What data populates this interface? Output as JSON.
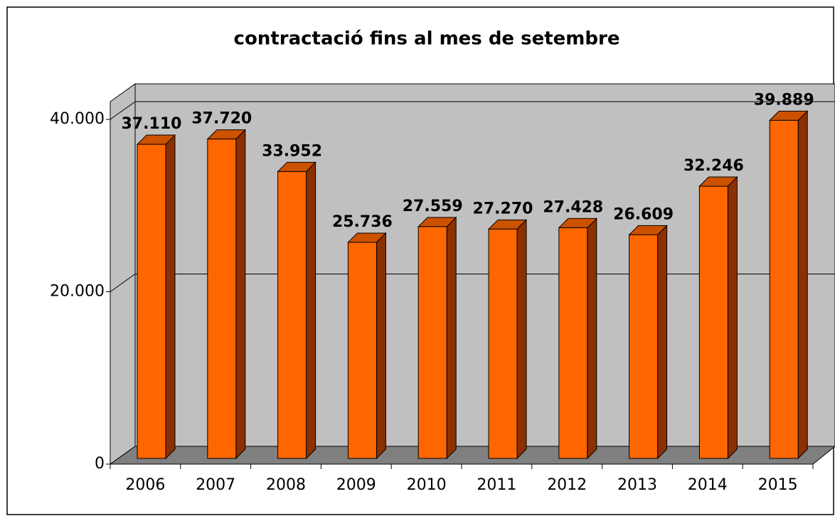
{
  "chart_data": {
    "type": "bar",
    "title": "contractació fins al mes de setembre",
    "categories": [
      "2006",
      "2007",
      "2008",
      "2009",
      "2010",
      "2011",
      "2012",
      "2013",
      "2014",
      "2015"
    ],
    "values": [
      37110,
      37720,
      33952,
      25736,
      27559,
      27270,
      27428,
      26609,
      32246,
      39889
    ],
    "value_labels": [
      "37.110",
      "37.720",
      "33.952",
      "25.736",
      "27.559",
      "27.270",
      "27.428",
      "26.609",
      "32.246",
      "39.889"
    ],
    "color": "#ff6600",
    "ylim": [
      0,
      42000
    ],
    "yticks": [
      0,
      {
        "value": 20000,
        "label": "20.000"
      },
      {
        "value": 40000,
        "label": "40.000"
      }
    ],
    "grid": true
  }
}
